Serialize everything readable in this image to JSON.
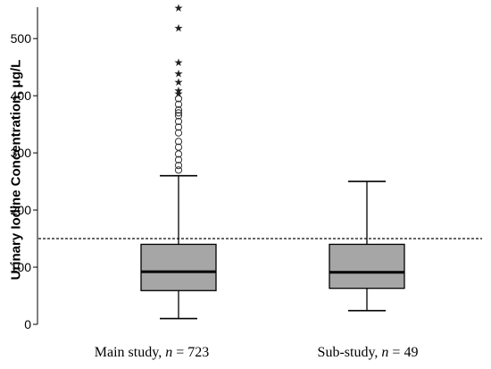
{
  "chart_data": {
    "type": "box",
    "ylabel": "Urinary Iodine Concentration, μg/L",
    "ylim": [
      0,
      555
    ],
    "yticks": [
      0,
      100,
      200,
      300,
      400,
      500
    ],
    "reference_line": 150,
    "categories": [
      {
        "label": "Main study, ",
        "n_label": "n",
        "n_text": " = 723",
        "whisker_low": 10,
        "q1": 59,
        "median": 92,
        "q3": 140,
        "whisker_high": 260,
        "outliers_circle": [
          270,
          278,
          288,
          298,
          310,
          320,
          335,
          345,
          355,
          365,
          370,
          375,
          385,
          395
        ],
        "outliers_star": [
          405,
          410,
          425,
          440,
          460,
          520,
          555
        ]
      },
      {
        "label": "Sub-study, ",
        "n_label": "n",
        "n_text": " = 49",
        "whisker_low": 24,
        "q1": 63,
        "median": 91,
        "q3": 140,
        "whisker_high": 250,
        "outliers_circle": [],
        "outliers_star": []
      }
    ],
    "grid": false,
    "colors": {
      "box_fill": "#a6a6a6",
      "line": "#000000",
      "reference": "#444444"
    }
  }
}
